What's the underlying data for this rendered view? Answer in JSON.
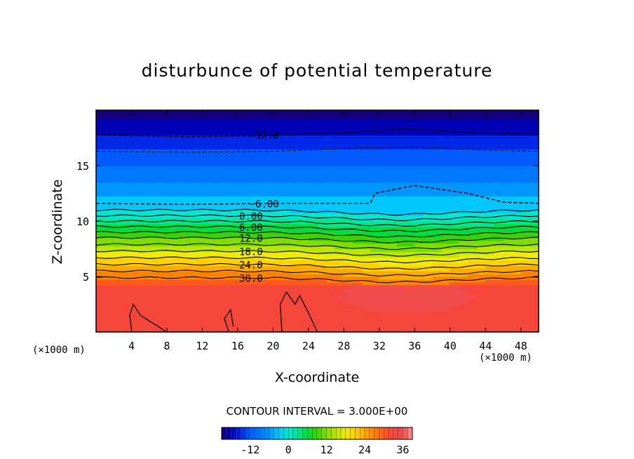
{
  "chart_data": {
    "type": "heatmap",
    "title": "disturbunce of potential temperature",
    "xlabel": "X-coordinate",
    "ylabel": "Z-coordinate",
    "x_unit": "(×1000 m)",
    "xlim": [
      0,
      50
    ],
    "ylim": [
      0,
      20
    ],
    "x_ticks": [
      4,
      8,
      12,
      16,
      20,
      24,
      28,
      32,
      36,
      40,
      44,
      48
    ],
    "y_ticks": [
      5,
      10,
      15
    ],
    "contour_interval_text": "CONTOUR INTERVAL = 3.000E+00",
    "contour_interval": 3,
    "colorbar": {
      "range": [
        -21,
        39
      ],
      "ticks": [
        -12,
        0,
        12,
        24,
        36
      ]
    },
    "contour_labels": [
      {
        "text": "-12.0",
        "x": 19,
        "z": 17.8
      },
      {
        "text": "-6.00",
        "x": 19,
        "z": 11.6
      },
      {
        "text": "0.00",
        "x": 17.5,
        "z": 10.5
      },
      {
        "text": "6.00",
        "x": 17.5,
        "z": 9.5
      },
      {
        "text": "12.0",
        "x": 17.5,
        "z": 8.5
      },
      {
        "text": "18.0",
        "x": 17.5,
        "z": 7.3
      },
      {
        "text": "24.0",
        "x": 17.5,
        "z": 6.1
      },
      {
        "text": "30.0",
        "x": 17.5,
        "z": 4.9
      }
    ],
    "grid": false
  },
  "colors": {
    "red": "#f04a4a",
    "orange": "#ff8c00",
    "yellow": "#ffe600",
    "green": "#3ccc00",
    "cyan": "#00e0e0",
    "blue": "#0078ff",
    "darkblue": "#0000a0"
  }
}
